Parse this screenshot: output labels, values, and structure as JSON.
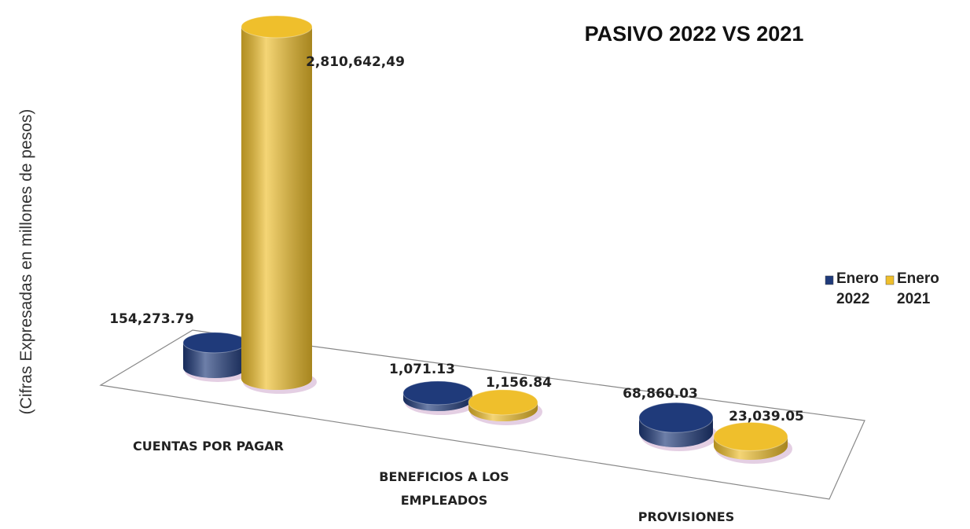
{
  "chart_data": {
    "type": "bar3d",
    "title": "PASIVO 2022 VS 2021",
    "y_label": "(Cifras Expresadas en millones de pesos)",
    "categories": [
      "CUENTAS POR PAGAR",
      "BENEFICIOS A LOS EMPLEADOS",
      "PROVISIONES"
    ],
    "series": [
      {
        "name": "Enero 2022",
        "color": "#1f3a7a",
        "values": [
          154273.79,
          1071.13,
          68860.03
        ],
        "value_labels": [
          "154,273.79",
          "1,071.13",
          "68,860.03"
        ]
      },
      {
        "name": "Enero 2021",
        "color": "#efbf2c",
        "values": [
          2810642.49,
          1156.84,
          23039.05
        ],
        "value_labels": [
          "2,810,642,49",
          "1,156.84",
          "23,039.05"
        ]
      }
    ],
    "legend": "right"
  }
}
